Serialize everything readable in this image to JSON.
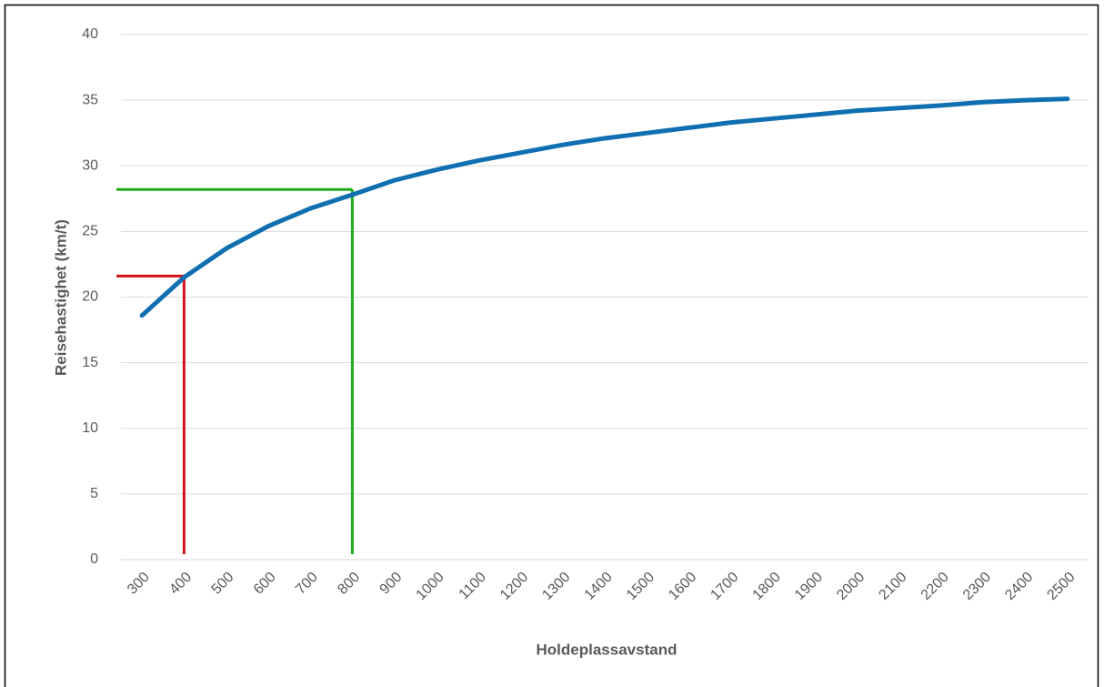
{
  "chart_data": {
    "type": "line",
    "xlabel": "Holdeplassavstand",
    "ylabel": "Reisehastighet (km/t)",
    "categories": [
      300,
      400,
      500,
      600,
      700,
      800,
      900,
      1000,
      1100,
      1200,
      1300,
      1400,
      1500,
      1600,
      1700,
      1800,
      1900,
      2000,
      2100,
      2200,
      2300,
      2400,
      2500
    ],
    "values": [
      18.6,
      21.5,
      23.7,
      25.4,
      26.75,
      27.8,
      28.9,
      29.7,
      30.4,
      31.0,
      31.6,
      32.1,
      32.5,
      32.9,
      33.3,
      33.6,
      33.9,
      34.2,
      34.4,
      34.6,
      34.85,
      35.0,
      35.1
    ],
    "color": "#0f6fb0",
    "ylim": [
      0,
      40
    ],
    "yticks": [
      0,
      5,
      10,
      15,
      20,
      25,
      30,
      35,
      40
    ],
    "grid": true,
    "reference_lines": [
      {
        "x": 400,
        "y": 21.6,
        "color": "#d0121b"
      },
      {
        "x": 800,
        "y": 28.2,
        "color": "#1fad1f"
      }
    ]
  }
}
